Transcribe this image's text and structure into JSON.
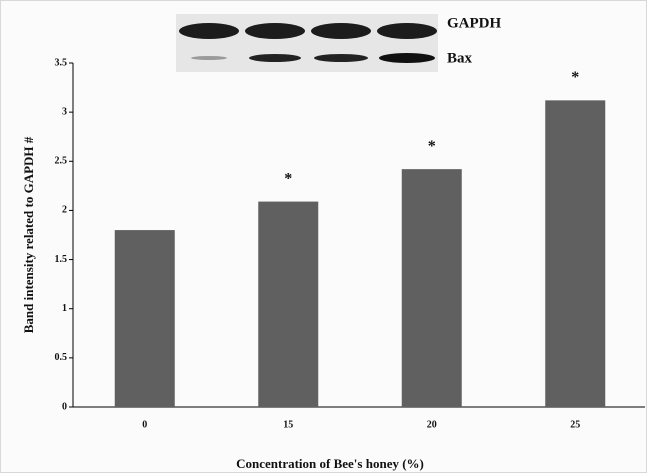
{
  "chart_data": {
    "type": "bar",
    "y_label": "Band intensity related to GAPDH #",
    "x_label": "Concentration of Bee's honey (%)",
    "categories": [
      "0",
      "15",
      "20",
      "25"
    ],
    "values": [
      1.8,
      2.09,
      2.42,
      3.12
    ],
    "annotations": [
      null,
      "*",
      "*",
      "*"
    ],
    "color": "#606060",
    "ylim": [
      0,
      3.5
    ],
    "yticks": [
      0,
      0.5,
      1,
      1.5,
      2,
      2.5,
      3,
      3.5
    ],
    "blot_labels": [
      "GAPDH",
      "Bax"
    ]
  }
}
